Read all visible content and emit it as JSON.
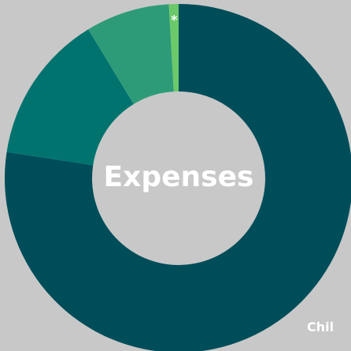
{
  "chart_data": {
    "type": "donut",
    "title": "Expenses",
    "categories": [
      "Chil",
      null,
      null,
      "*"
    ],
    "values": [
      77.4,
      13.9,
      7.8,
      0.9
    ],
    "colors": [
      "#004d5a",
      "#00736e",
      "#2e9b78",
      "#6cc96a"
    ]
  }
}
